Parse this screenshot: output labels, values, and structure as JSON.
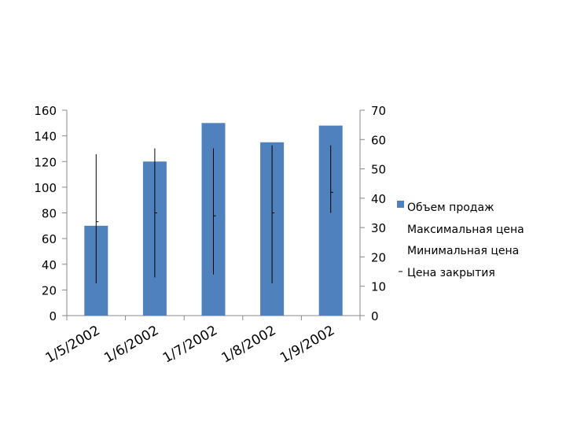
{
  "chart_data": {
    "type": "stock",
    "categories": [
      "1/5/2002",
      "1/6/2002",
      "1/7/2002",
      "1/8/2002",
      "1/9/2002"
    ],
    "series": [
      {
        "name": "Объем продаж",
        "axis": "left",
        "style": "bar",
        "color": "#4f81bd",
        "values": [
          70,
          120,
          150,
          135,
          148
        ]
      },
      {
        "name": "Максимальная цена",
        "axis": "right",
        "style": "high",
        "values": [
          55,
          57,
          57,
          58,
          58
        ]
      },
      {
        "name": "Минимальная цена",
        "axis": "right",
        "style": "low",
        "values": [
          11,
          13,
          14,
          11,
          35
        ]
      },
      {
        "name": "Цена закрытия",
        "axis": "right",
        "style": "close",
        "values": [
          32,
          35,
          34,
          35,
          42
        ]
      }
    ],
    "y_left": {
      "min": 0,
      "max": 160,
      "ticks": [
        0,
        20,
        40,
        60,
        80,
        100,
        120,
        140,
        160
      ]
    },
    "y_right": {
      "min": 0,
      "max": 70,
      "ticks": [
        0,
        10,
        20,
        30,
        40,
        50,
        60,
        70
      ]
    },
    "legend": "right",
    "grid": false
  }
}
